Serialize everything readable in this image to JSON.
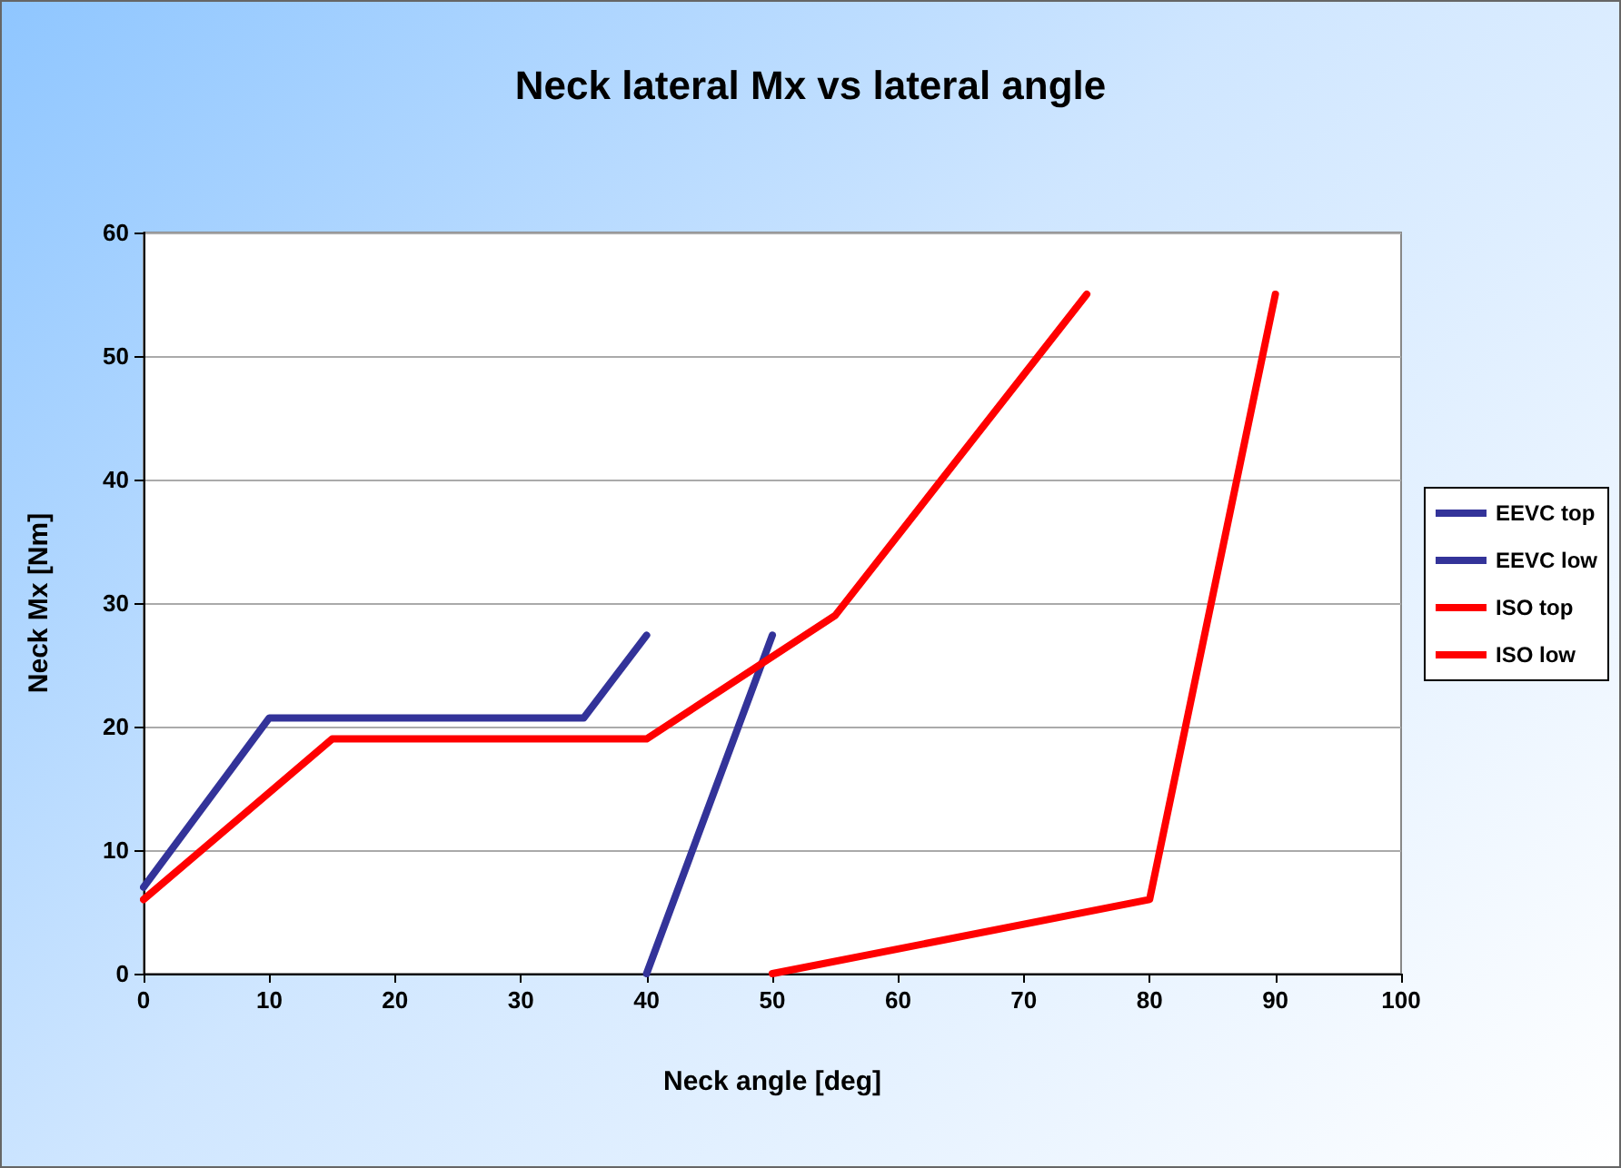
{
  "chart_data": {
    "type": "line",
    "title": "Neck lateral Mx vs lateral angle",
    "xlabel": "Neck angle [deg]",
    "ylabel": "Neck Mx [Nm]",
    "xlim": [
      0,
      100
    ],
    "xticks": [
      0,
      10,
      20,
      30,
      40,
      50,
      60,
      70,
      80,
      90,
      100
    ],
    "ylim": [
      0,
      60
    ],
    "yticks": [
      0,
      10,
      20,
      30,
      40,
      50,
      60
    ],
    "grid": "y",
    "legend": "right",
    "marker": "none",
    "line_style": "solid",
    "series": [
      {
        "name": "EEVC top",
        "color": "#333399",
        "x": [
          0,
          10,
          35,
          40
        ],
        "values": [
          7,
          20.7,
          20.7,
          27.4
        ]
      },
      {
        "name": "EEVC low",
        "color": "#333399",
        "x": [
          40,
          50
        ],
        "values": [
          0,
          27.4
        ]
      },
      {
        "name": "ISO top",
        "color": "#ff0000",
        "x": [
          0,
          15,
          40,
          55,
          75
        ],
        "values": [
          6,
          19,
          19,
          29,
          55
        ]
      },
      {
        "name": "ISO low",
        "color": "#ff0000",
        "x": [
          50,
          80,
          90
        ],
        "values": [
          0,
          6,
          55
        ]
      }
    ]
  }
}
